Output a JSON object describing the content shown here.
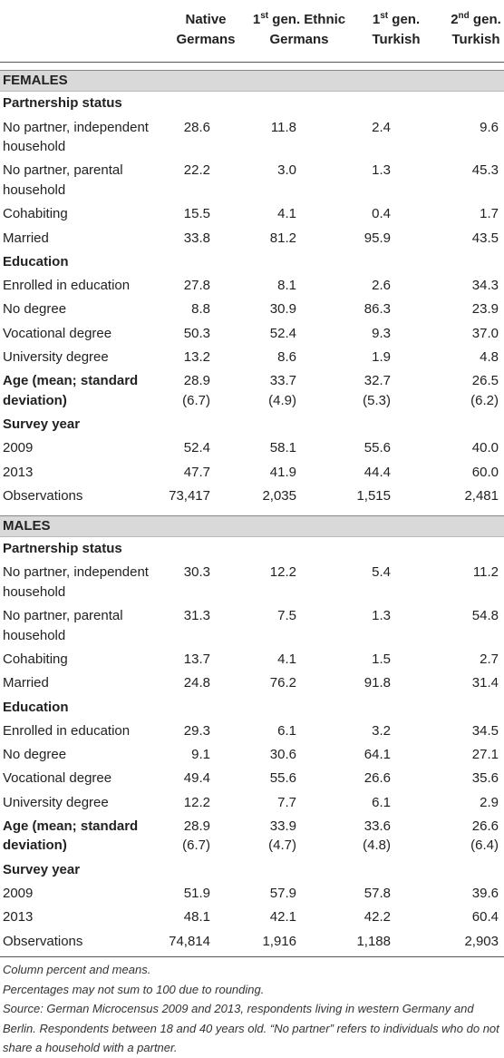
{
  "header": {
    "columns": [
      {
        "text": "Native Germans"
      },
      {
        "pre": "1",
        "sup": "st",
        "text": " gen. Ethnic Germans"
      },
      {
        "pre": "1",
        "sup": "st",
        "text": " gen. Turkish"
      },
      {
        "pre": "2",
        "sup": "nd",
        "text": " gen. Turkish"
      }
    ]
  },
  "sections": [
    {
      "title": "FEMALES",
      "groups": [
        {
          "title": "Partnership status",
          "rows": [
            {
              "label": "No partner, independent household",
              "values": [
                "28.6",
                "11.8",
                "2.4",
                "9.6"
              ]
            },
            {
              "label": "No partner, parental household",
              "values": [
                "22.2",
                "3.0",
                "1.3",
                "45.3"
              ]
            },
            {
              "label": "Cohabiting",
              "values": [
                "15.5",
                "4.1",
                "0.4",
                "1.7"
              ]
            },
            {
              "label": "Married",
              "values": [
                "33.8",
                "81.2",
                "95.9",
                "43.5"
              ]
            }
          ]
        },
        {
          "title": "Education",
          "rows": [
            {
              "label": "Enrolled in education",
              "values": [
                "27.8",
                "8.1",
                "2.6",
                "34.3"
              ]
            },
            {
              "label": "No degree",
              "values": [
                "8.8",
                "30.9",
                "86.3",
                "23.9"
              ]
            },
            {
              "label": "Vocational degree",
              "values": [
                "50.3",
                "52.4",
                "9.3",
                "37.0"
              ]
            },
            {
              "label": "University degree",
              "values": [
                "13.2",
                "8.6",
                "1.9",
                "4.8"
              ]
            }
          ]
        },
        {
          "title": "Age (mean; standard deviation)",
          "values": [
            "28.9",
            "33.7",
            "32.7",
            "26.5"
          ],
          "sd": [
            "(6.7)",
            "(4.9)",
            "(5.3)",
            "(6.2)"
          ]
        },
        {
          "title": "Survey year",
          "rows": [
            {
              "label": "2009",
              "values": [
                "52.4",
                "58.1",
                "55.6",
                "40.0"
              ]
            },
            {
              "label": "2013",
              "values": [
                "47.7",
                "41.9",
                "44.4",
                "60.0"
              ]
            },
            {
              "label": "Observations",
              "values": [
                "73,417",
                "2,035",
                "1,515",
                "2,481"
              ]
            }
          ]
        }
      ]
    },
    {
      "title": "MALES",
      "groups": [
        {
          "title": "Partnership status",
          "rows": [
            {
              "label": "No partner, independent household",
              "values": [
                "30.3",
                "12.2",
                "5.4",
                "11.2"
              ]
            },
            {
              "label": "No partner, parental household",
              "values": [
                "31.3",
                "7.5",
                "1.3",
                "54.8"
              ]
            },
            {
              "label": "Cohabiting",
              "values": [
                "13.7",
                "4.1",
                "1.5",
                "2.7"
              ]
            },
            {
              "label": "Married",
              "values": [
                "24.8",
                "76.2",
                "91.8",
                "31.4"
              ]
            }
          ]
        },
        {
          "title": "Education",
          "rows": [
            {
              "label": "Enrolled in education",
              "values": [
                "29.3",
                "6.1",
                "3.2",
                "34.5"
              ]
            },
            {
              "label": "No degree",
              "values": [
                "9.1",
                "30.6",
                "64.1",
                "27.1"
              ]
            },
            {
              "label": "Vocational degree",
              "values": [
                "49.4",
                "55.6",
                "26.6",
                "35.6"
              ]
            },
            {
              "label": "University degree",
              "values": [
                "12.2",
                "7.7",
                "6.1",
                "2.9"
              ]
            }
          ]
        },
        {
          "title": "Age (mean; standard deviation)",
          "values": [
            "28.9",
            "33.9",
            "33.6",
            "26.6"
          ],
          "sd": [
            "(6.7)",
            "(4.7)",
            "(4.8)",
            "(6.4)"
          ]
        },
        {
          "title": "Survey year",
          "rows": [
            {
              "label": "2009",
              "values": [
                "51.9",
                "57.9",
                "57.8",
                "39.6"
              ]
            },
            {
              "label": "2013",
              "values": [
                "48.1",
                "42.1",
                "42.2",
                "60.4"
              ]
            },
            {
              "label": "Observations",
              "values": [
                "74,814",
                "1,916",
                "1,188",
                "2,903"
              ]
            }
          ]
        }
      ]
    }
  ],
  "notes": [
    "Column percent and means.",
    "Percentages may not sum to 100 due to rounding.",
    "Source: German Microcensus 2009 and 2013, respondents living in western Germany and Berlin. Respondents between 18 and 40 years old. “No partner” refers to individuals who do not share a household with a partner."
  ]
}
